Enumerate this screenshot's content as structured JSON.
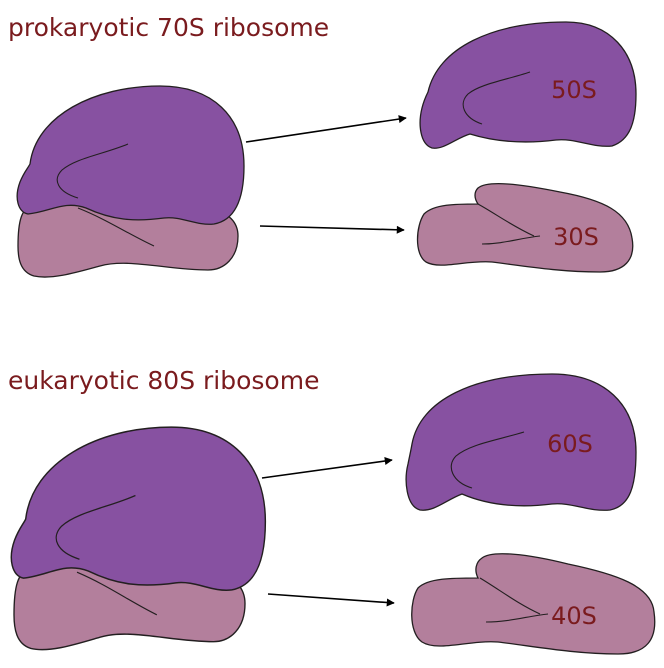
{
  "colors": {
    "text": "#7a1b1e",
    "large_subunit": "#8751a1",
    "small_subunit": "#b37f9c",
    "outline": "#231f20",
    "arrow": "#000000"
  },
  "prokaryotic": {
    "title": "prokaryotic 70S ribosome",
    "large_subunit_label": "50S",
    "small_subunit_label": "30S"
  },
  "eukaryotic": {
    "title": "eukaryotic 80S ribosome",
    "large_subunit_label": "60S",
    "small_subunit_label": "40S"
  }
}
